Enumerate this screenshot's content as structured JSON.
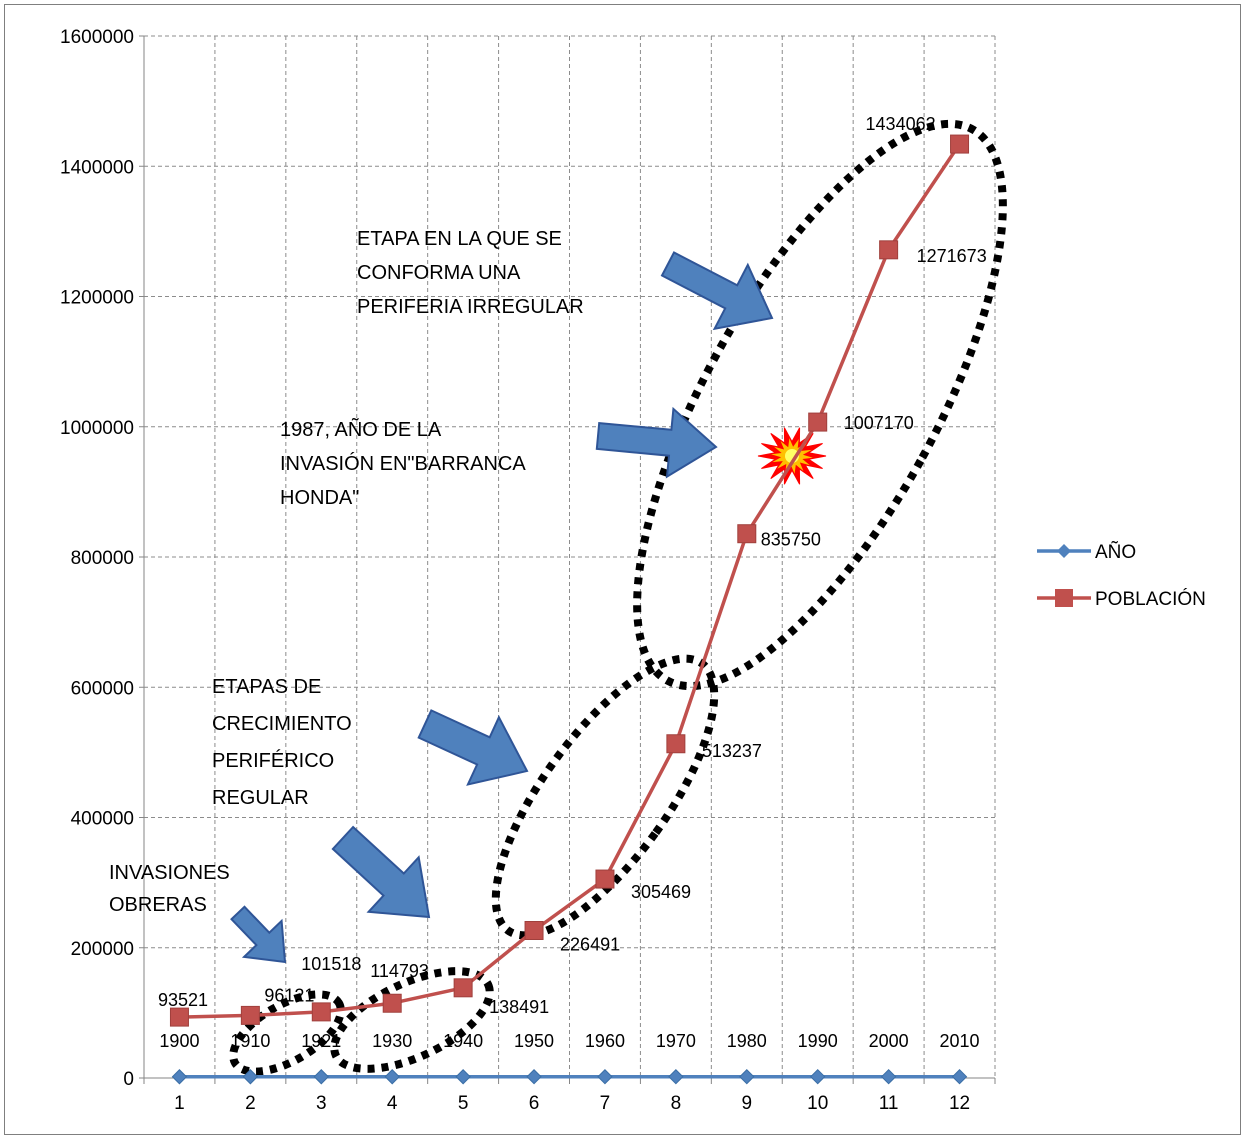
{
  "chart_data": {
    "type": "line",
    "x": [
      1,
      2,
      3,
      4,
      5,
      6,
      7,
      8,
      9,
      10,
      11,
      12
    ],
    "ylim": [
      0,
      1600000
    ],
    "y_ticks": [
      "0",
      "200000",
      "400000",
      "600000",
      "800000",
      "1000000",
      "1200000",
      "1400000",
      "1600000"
    ],
    "x_ticks": [
      "1",
      "2",
      "3",
      "4",
      "5",
      "6",
      "7",
      "8",
      "9",
      "10",
      "11",
      "12"
    ],
    "grid": true,
    "legend_position": "right",
    "series": [
      {
        "name": "AÑO",
        "color": "#4f81bd",
        "marker": "diamond",
        "values": [
          1900,
          1910,
          1921,
          1930,
          1940,
          1950,
          1960,
          1970,
          1980,
          1990,
          2000,
          2010
        ],
        "labels": [
          "1900",
          "1910",
          "1921",
          "1930",
          "1940",
          "1950",
          "1960",
          "1970",
          "1980",
          "1990",
          "2000",
          "2010"
        ]
      },
      {
        "name": "POBLACIÓN",
        "color": "#c0504d",
        "marker": "square",
        "values": [
          93521,
          96121,
          101518,
          114793,
          138491,
          226491,
          305469,
          513237,
          835750,
          1007170,
          1271673,
          1434062
        ],
        "labels": [
          "93521",
          "96121",
          "101518",
          "114793",
          "138491",
          "226491",
          "305469",
          "513237",
          "835750",
          "1007170",
          "1271673",
          "1434062"
        ]
      }
    ],
    "annotations": [
      {
        "id": "periferia",
        "lines": [
          "ETAPA  EN LA QUE SE",
          "CONFORMA UNA",
          "PERIFERIA IRREGULAR"
        ]
      },
      {
        "id": "invasion1987",
        "lines": [
          "1987, AÑO DE LA",
          "INVASIÓN EN\"BARRANCA",
          "HONDA\""
        ]
      },
      {
        "id": "crecimiento",
        "lines": [
          "ETAPAS DE",
          "CRECIMIENTO",
          "PERIFÉRICO",
          "REGULAR"
        ]
      },
      {
        "id": "obreras",
        "lines": [
          "INVASIONES",
          "OBRERAS"
        ]
      }
    ],
    "arrow_color": "#4f81bd",
    "burst_color": "#ff0000"
  }
}
